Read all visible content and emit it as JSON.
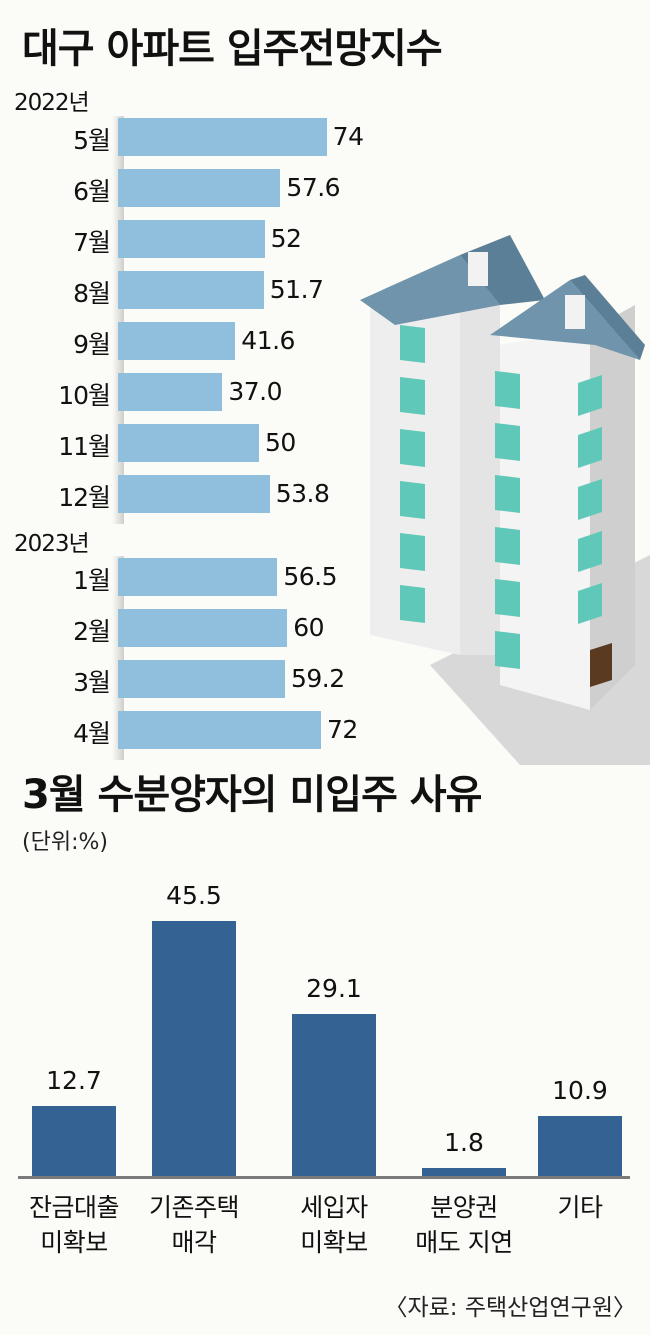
{
  "title_top": "대구 아파트 입주전망지수",
  "title_bottom": "3월 수분양자의 미입주 사유",
  "unit_label": "(단위:%)",
  "source": "〈자료: 주택산업연구원〉",
  "colors": {
    "hbar": "#8fbfdc",
    "vbar": "#346293",
    "roof": "#6f94ab",
    "window": "#5fc8b8"
  },
  "chart_data": [
    {
      "type": "bar",
      "orientation": "horizontal",
      "title": "대구 아파트 입주전망지수",
      "groups": [
        {
          "year": "2022년",
          "categories": [
            "5월",
            "6월",
            "7월",
            "8월",
            "9월",
            "10월",
            "11월",
            "12월"
          ],
          "value_labels": [
            "74",
            "57.6",
            "52",
            "51.7",
            "41.6",
            "37.0",
            "50",
            "53.8"
          ],
          "values": [
            74,
            57.6,
            52,
            51.7,
            41.6,
            37.0,
            50,
            53.8
          ]
        },
        {
          "year": "2023년",
          "categories": [
            "1월",
            "2월",
            "3월",
            "4월"
          ],
          "value_labels": [
            "56.5",
            "60",
            "59.2",
            "72"
          ],
          "values": [
            56.5,
            60,
            59.2,
            72
          ]
        }
      ],
      "xlim": [
        0,
        100
      ]
    },
    {
      "type": "bar",
      "orientation": "vertical",
      "title": "3월 수분양자의 미입주 사유",
      "unit": "(단위:%)",
      "categories": [
        [
          "잔금대출",
          "미확보"
        ],
        [
          "기존주택",
          "매각"
        ],
        [
          "세입자",
          "미확보"
        ],
        [
          "분양권",
          "매도 지연"
        ],
        [
          "기타"
        ]
      ],
      "value_labels": [
        "12.7",
        "45.5",
        "29.1",
        "1.8",
        "10.9"
      ],
      "values": [
        12.7,
        45.5,
        29.1,
        1.8,
        10.9
      ],
      "ylim": [
        0,
        50
      ]
    }
  ]
}
